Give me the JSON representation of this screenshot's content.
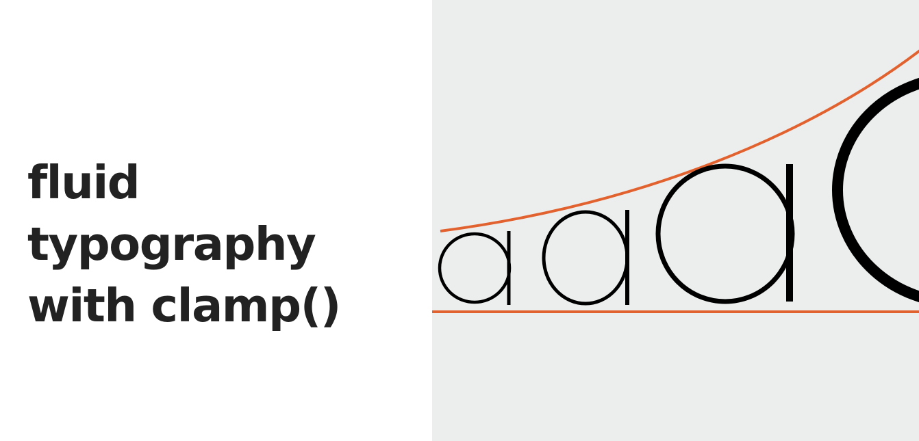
{
  "headline": {
    "line1": "fluid",
    "line2": "typography",
    "line3": "with clamp()"
  },
  "illustration": {
    "letters": [
      "a",
      "a",
      "a",
      "a"
    ],
    "colors": {
      "accent_line": "#e2622f",
      "glyph": "#000000",
      "panel_background": "#eceeed",
      "text": "#222222"
    }
  }
}
